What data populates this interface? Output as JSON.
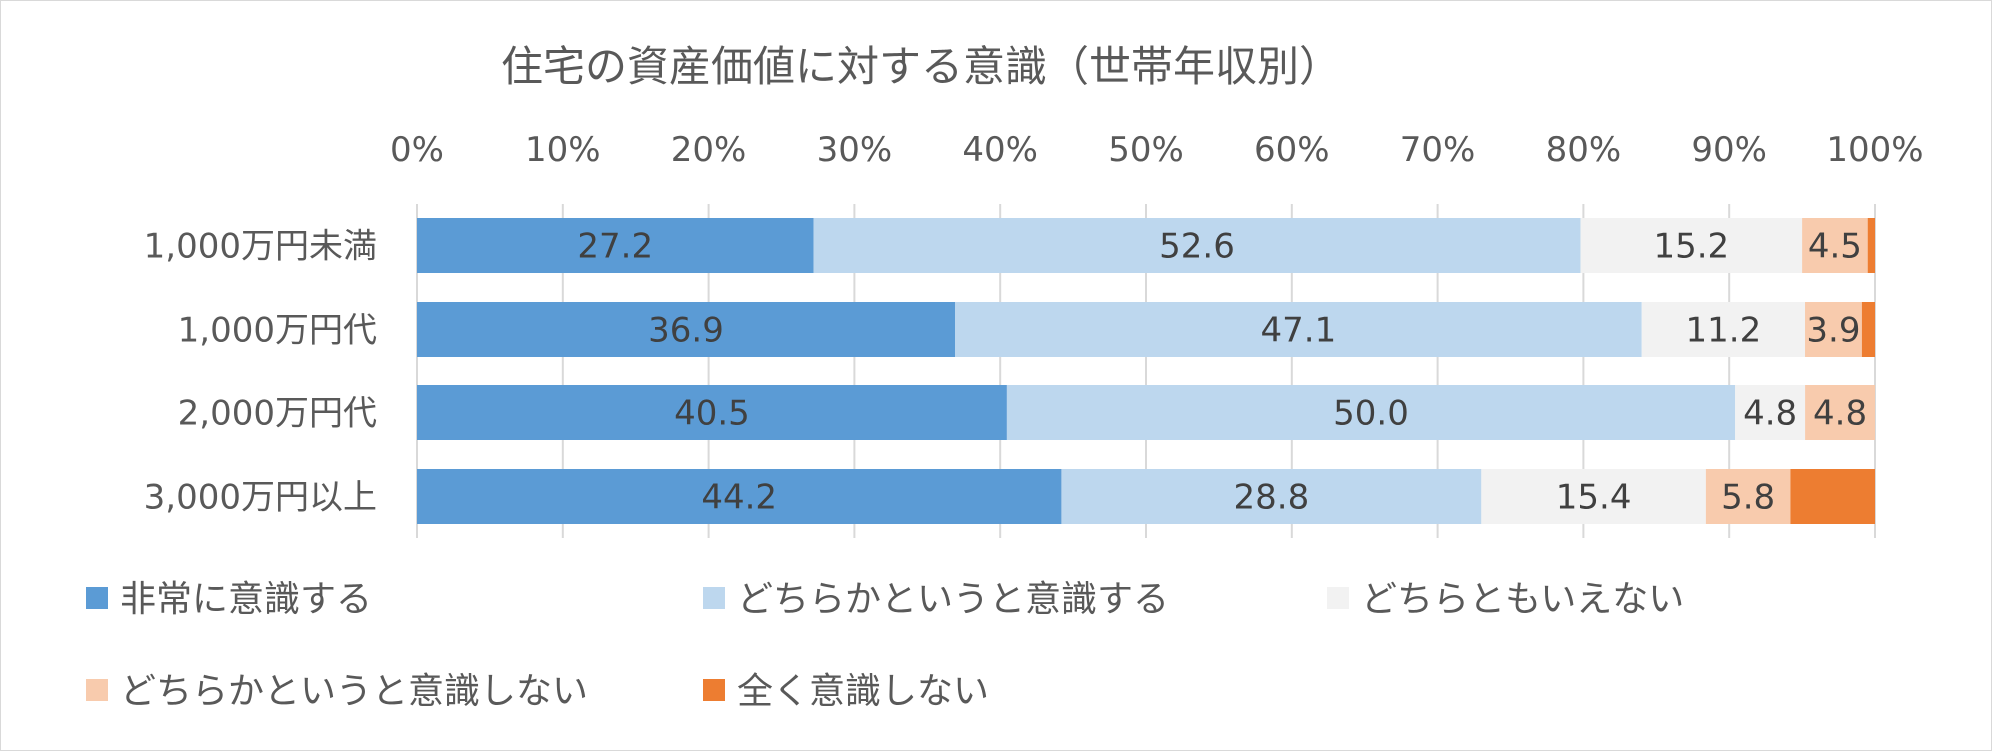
{
  "chart_data": {
    "type": "bar",
    "orientation": "horizontal",
    "stacked": "percent",
    "title": "住宅の資産価値に対する意識（世帯年収別）",
    "xlabel": "",
    "ylabel": "",
    "xlim": [
      0,
      100
    ],
    "x_ticks": [
      "0%",
      "10%",
      "20%",
      "30%",
      "40%",
      "50%",
      "60%",
      "70%",
      "80%",
      "90%",
      "100%"
    ],
    "grid": "vertical",
    "legend_position": "bottom",
    "categories": [
      "1,000万円未満",
      "1,000万円代",
      "2,000万円代",
      "3,000万円以上"
    ],
    "series": [
      {
        "name": "非常に意識する",
        "color": "#5b9bd5",
        "values": [
          27.2,
          36.9,
          40.5,
          44.2
        ]
      },
      {
        "name": "どちらかというと意識する",
        "color": "#bdd7ee",
        "values": [
          52.6,
          47.1,
          50.0,
          28.8
        ]
      },
      {
        "name": "どちらともいえない",
        "color": "#f2f2f2",
        "values": [
          15.2,
          11.2,
          4.8,
          15.4
        ]
      },
      {
        "name": "どちらかというと意識しない",
        "color": "#f8cbad",
        "values": [
          4.5,
          3.9,
          4.8,
          5.8
        ]
      },
      {
        "name": "全く意識しない",
        "color": "#ed7d31",
        "values": [
          0.5,
          0.9,
          0.0,
          5.8
        ]
      }
    ],
    "data_labels": [
      [
        "27.2",
        "52.6",
        "15.2",
        "4.5",
        ""
      ],
      [
        "36.9",
        "47.1",
        "11.2",
        "3.9",
        ""
      ],
      [
        "40.5",
        "50.0",
        "4.8",
        "4.8",
        ""
      ],
      [
        "44.2",
        "28.8",
        "15.4",
        "5.8",
        ""
      ]
    ]
  }
}
